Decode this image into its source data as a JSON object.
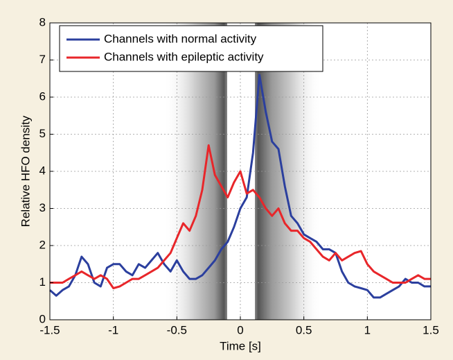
{
  "chart_data": {
    "type": "line",
    "xlabel": "Time [s]",
    "ylabel": "Relative HFO density",
    "x": [
      -1.5,
      -1.45,
      -1.4,
      -1.35,
      -1.3,
      -1.25,
      -1.2,
      -1.15,
      -1.1,
      -1.05,
      -1.0,
      -0.95,
      -0.9,
      -0.85,
      -0.8,
      -0.75,
      -0.7,
      -0.65,
      -0.6,
      -0.55,
      -0.5,
      -0.45,
      -0.4,
      -0.35,
      -0.3,
      -0.25,
      -0.2,
      -0.15,
      -0.1,
      -0.05,
      0,
      0.05,
      0.1,
      0.15,
      0.2,
      0.25,
      0.3,
      0.35,
      0.4,
      0.45,
      0.5,
      0.55,
      0.6,
      0.65,
      0.7,
      0.75,
      0.8,
      0.85,
      0.9,
      0.95,
      1.0,
      1.05,
      1.1,
      1.15,
      1.2,
      1.25,
      1.3,
      1.35,
      1.4,
      1.45,
      1.5
    ],
    "series": [
      {
        "name": "Channels with normal activity",
        "color": "#2b3f9e",
        "values": [
          0.8,
          0.65,
          0.8,
          0.9,
          1.2,
          1.7,
          1.5,
          1.0,
          0.9,
          1.4,
          1.5,
          1.5,
          1.3,
          1.2,
          1.5,
          1.4,
          1.6,
          1.8,
          1.5,
          1.3,
          1.6,
          1.3,
          1.1,
          1.1,
          1.2,
          1.4,
          1.6,
          1.9,
          2.1,
          2.5,
          3.0,
          3.3,
          4.5,
          6.6,
          5.6,
          4.8,
          4.6,
          3.6,
          2.8,
          2.6,
          2.3,
          2.2,
          2.1,
          1.9,
          1.9,
          1.8,
          1.3,
          1.0,
          0.9,
          0.85,
          0.8,
          0.6,
          0.6,
          0.7,
          0.8,
          0.9,
          1.1,
          1.0,
          1.0,
          0.9,
          0.9
        ]
      },
      {
        "name": "Channels with epileptic activity",
        "color": "#e8262a",
        "values": [
          1.0,
          1.0,
          1.0,
          1.1,
          1.2,
          1.3,
          1.2,
          1.1,
          1.2,
          1.1,
          0.85,
          0.9,
          1.0,
          1.1,
          1.1,
          1.2,
          1.3,
          1.4,
          1.6,
          1.8,
          2.2,
          2.6,
          2.4,
          2.8,
          3.5,
          4.7,
          3.9,
          3.6,
          3.3,
          3.7,
          4.0,
          3.4,
          3.5,
          3.3,
          3.0,
          2.8,
          3.0,
          2.6,
          2.4,
          2.4,
          2.2,
          2.1,
          1.9,
          1.7,
          1.6,
          1.8,
          1.6,
          1.7,
          1.8,
          1.85,
          1.5,
          1.3,
          1.2,
          1.1,
          1.0,
          1.0,
          1.0,
          1.1,
          1.2,
          1.1,
          1.1
        ]
      }
    ],
    "xlim": [
      -1.5,
      1.5
    ],
    "xticks": [
      -1.5,
      -1,
      -0.5,
      0,
      0.5,
      1,
      1.5
    ],
    "ylim": [
      0,
      8
    ],
    "yticks": [
      0,
      1,
      2,
      3,
      4,
      5,
      6,
      7,
      8
    ],
    "grid": true,
    "legend": "upper left"
  }
}
